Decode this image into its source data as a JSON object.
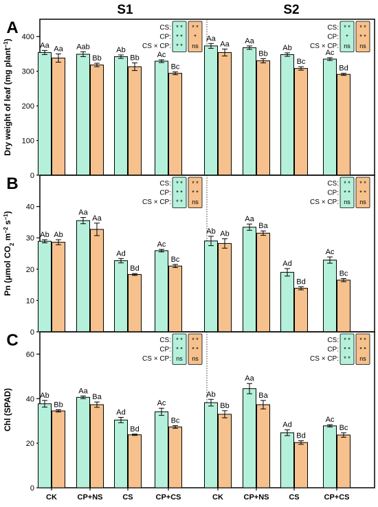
{
  "figure": {
    "section_titles": [
      "S1",
      "S2"
    ],
    "colors": {
      "green": "#b5f1da",
      "orange": "#f6c18d",
      "axis": "#000000"
    },
    "x_categories": [
      "CK",
      "CP+NS",
      "CS",
      "CP+CS"
    ],
    "anova_row_labels": [
      "CS:",
      "CP:",
      "CS × CP:"
    ]
  },
  "chart_data": [
    {
      "type": "bar",
      "panel": "A",
      "ylabel_parts": [
        "Dry weight of leaf (mg plant",
        "−1",
        ")"
      ],
      "ylim": [
        0,
        450
      ],
      "yticks": [
        0,
        100,
        200,
        300,
        400
      ],
      "categories": [
        "CK",
        "CP+NS",
        "CS",
        "CP+CS"
      ],
      "groups": [
        {
          "name": "S1",
          "series": [
            {
              "color": "green",
              "values": [
                354,
                349,
                342,
                329
              ],
              "errors": [
                6,
                7,
                5,
                4
              ],
              "labels": [
                "Aa",
                "Aab",
                "Ab",
                "Ac"
              ]
            },
            {
              "color": "orange",
              "values": [
                338,
                318,
                313,
                294
              ],
              "errors": [
                12,
                5,
                11,
                4
              ],
              "labels": [
                "Aa",
                "Bb",
                "Bb",
                "Bc"
              ]
            }
          ],
          "anova": {
            "green": [
              "* *",
              "* *",
              "* *"
            ],
            "orange": [
              "* *",
              "*",
              "ns"
            ]
          }
        },
        {
          "name": "S2",
          "series": [
            {
              "color": "green",
              "values": [
                373,
                368,
                348,
                335
              ],
              "errors": [
                7,
                5,
                5,
                4
              ],
              "labels": [
                "Aa",
                "Aa",
                "Ab",
                "Ac"
              ]
            },
            {
              "color": "orange",
              "values": [
                354,
                330,
                308,
                291
              ],
              "errors": [
                10,
                6,
                5,
                3
              ],
              "labels": [
                "Aa",
                "Bb",
                "Bc",
                "Bd"
              ]
            }
          ],
          "anova": {
            "green": [
              "* *",
              "*",
              "ns"
            ],
            "orange": [
              "* *",
              "* *",
              "ns"
            ]
          }
        }
      ]
    },
    {
      "type": "bar",
      "panel": "B",
      "ylabel_parts": [
        "Pn (μmol CO",
        "2",
        " m",
        "−2",
        " s",
        "−1",
        ")"
      ],
      "ylim": [
        0,
        50
      ],
      "yticks": [
        0,
        10,
        20,
        30,
        40
      ],
      "categories": [
        "CK",
        "CP+NS",
        "CS",
        "CP+CS"
      ],
      "groups": [
        {
          "name": "S1",
          "series": [
            {
              "color": "green",
              "values": [
                28.9,
                35.5,
                22.7,
                25.9
              ],
              "errors": [
                0.5,
                1.0,
                0.7,
                0.4
              ],
              "labels": [
                "Ab",
                "Aa",
                "Ad",
                "Ac"
              ]
            },
            {
              "color": "orange",
              "values": [
                28.6,
                32.7,
                18.3,
                21.0
              ],
              "errors": [
                0.8,
                2.0,
                0.3,
                0.5
              ],
              "labels": [
                "Ab",
                "Aa",
                "Bd",
                "Bc"
              ]
            }
          ],
          "anova": {
            "green": [
              "* *",
              "* *",
              "* *"
            ],
            "orange": [
              "* *",
              "* *",
              "ns"
            ]
          }
        },
        {
          "name": "S2",
          "series": [
            {
              "color": "green",
              "values": [
                29.0,
                33.4,
                19.0,
                22.9
              ],
              "errors": [
                1.5,
                1.0,
                1.2,
                1.0
              ],
              "labels": [
                "Ab",
                "Aa",
                "Ad",
                "Ac"
              ]
            },
            {
              "color": "orange",
              "values": [
                28.2,
                31.5,
                13.9,
                16.5
              ],
              "errors": [
                1.5,
                0.7,
                0.5,
                0.5
              ],
              "labels": [
                "Ab",
                "Ba",
                "Bd",
                "Bc"
              ]
            }
          ],
          "anova": {
            "green": [
              "* *",
              "* *",
              "ns"
            ],
            "orange": [
              "* *",
              "* *",
              "ns"
            ]
          }
        }
      ]
    },
    {
      "type": "bar",
      "panel": "C",
      "ylabel_parts": [
        "Chl (SPAD)"
      ],
      "ylim": [
        0,
        70
      ],
      "yticks": [
        0,
        20,
        40,
        60
      ],
      "categories": [
        "CK",
        "CP+NS",
        "CS",
        "CP+CS"
      ],
      "groups": [
        {
          "name": "S1",
          "series": [
            {
              "color": "green",
              "values": [
                37.7,
                40.6,
                30.4,
                34.1
              ],
              "errors": [
                1.5,
                0.6,
                1.2,
                1.6
              ],
              "labels": [
                "Ab",
                "Aa",
                "Ad",
                "Ac"
              ]
            },
            {
              "color": "orange",
              "values": [
                34.5,
                37.3,
                23.8,
                27.3
              ],
              "errors": [
                0.5,
                1.2,
                0.3,
                0.6
              ],
              "labels": [
                "Bb",
                "Ba",
                "Bd",
                "Bc"
              ]
            }
          ],
          "anova": {
            "green": [
              "* *",
              "* *",
              "ns"
            ],
            "orange": [
              "* *",
              "* *",
              "ns"
            ]
          }
        },
        {
          "name": "S2",
          "series": [
            {
              "color": "green",
              "values": [
                38.2,
                44.5,
                24.7,
                27.8
              ],
              "errors": [
                1.5,
                2.3,
                1.3,
                0.5
              ],
              "labels": [
                "Ab",
                "Aa",
                "Ad",
                "Ac"
              ]
            },
            {
              "color": "orange",
              "values": [
                33.0,
                37.3,
                20.3,
                23.7
              ],
              "errors": [
                1.6,
                1.9,
                0.8,
                1.0
              ],
              "labels": [
                "Bb",
                "Ba",
                "Bd",
                "Bc"
              ]
            }
          ],
          "anova": {
            "green": [
              "* *",
              "* *",
              "* *"
            ],
            "orange": [
              "* *",
              "* *",
              "ns"
            ]
          }
        }
      ]
    }
  ]
}
